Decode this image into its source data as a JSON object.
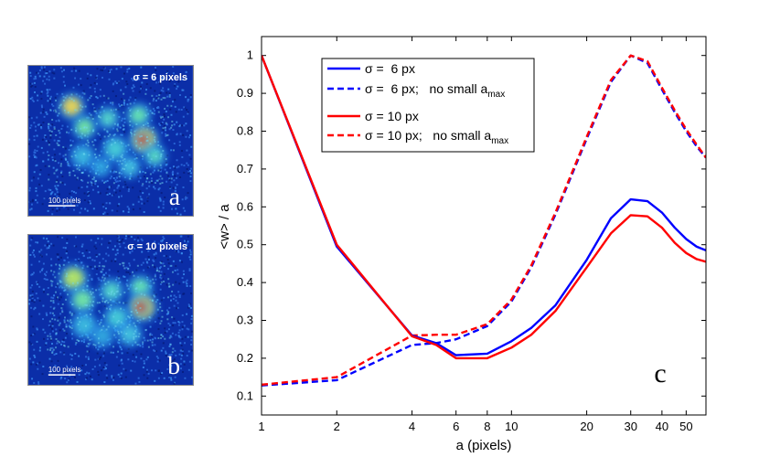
{
  "images": [
    {
      "id": "a",
      "sigma_label": "σ = 6 pixels",
      "scale_label": "100 pixels",
      "letter": "a",
      "colors": {
        "background": "#0b2ea8",
        "label": "#ffffff"
      }
    },
    {
      "id": "b",
      "sigma_label": "σ = 10 pixels",
      "scale_label": "100 pixels",
      "letter": "b",
      "colors": {
        "background": "#0b2ea8",
        "label": "#ffffff"
      }
    }
  ],
  "chart_data": {
    "type": "line",
    "panel_label": "c",
    "xlabel": "a (pixels)",
    "ylabel": "<w> / a",
    "xscale": "log",
    "xlim": [
      1,
      60
    ],
    "ylim": [
      0.05,
      1.05
    ],
    "xticks": [
      1,
      2,
      4,
      6,
      8,
      10,
      20,
      30,
      40,
      50
    ],
    "xtick_labels": [
      "1",
      "2",
      "4",
      "6",
      "8",
      "10",
      "20",
      "30",
      "40",
      "50"
    ],
    "yticks": [
      0.1,
      0.2,
      0.3,
      0.4,
      0.5,
      0.6,
      0.7,
      0.8,
      0.9,
      1
    ],
    "ytick_labels": [
      "0.1",
      "0.2",
      "0.3",
      "0.4",
      "0.5",
      "0.6",
      "0.7",
      "0.8",
      "0.9",
      "1"
    ],
    "legend_position": "top-left",
    "series": [
      {
        "name": "σ =  6 px",
        "color": "#0000ff",
        "dash": "solid",
        "x": [
          1,
          2,
          4,
          5,
          6,
          8,
          10,
          12,
          15,
          20,
          25,
          30,
          35,
          40,
          45,
          50,
          55,
          60
        ],
        "y": [
          1.0,
          0.495,
          0.26,
          0.24,
          0.208,
          0.212,
          0.245,
          0.28,
          0.34,
          0.46,
          0.57,
          0.62,
          0.615,
          0.585,
          0.545,
          0.515,
          0.495,
          0.485
        ]
      },
      {
        "name": "σ =  6 px;   no small a",
        "subscript": "max",
        "color": "#0000ff",
        "dash": "dashed",
        "x": [
          1,
          2,
          4,
          5,
          6,
          8,
          10,
          12,
          15,
          20,
          25,
          30,
          35,
          40,
          45,
          50,
          55,
          60
        ],
        "y": [
          0.128,
          0.142,
          0.235,
          0.24,
          0.25,
          0.285,
          0.35,
          0.44,
          0.58,
          0.78,
          0.93,
          1.0,
          0.98,
          0.91,
          0.85,
          0.8,
          0.76,
          0.73
        ]
      },
      {
        "name": "σ = 10 px",
        "color": "#ff0000",
        "dash": "solid",
        "x": [
          1,
          2,
          4,
          5,
          6,
          8,
          10,
          12,
          15,
          20,
          25,
          30,
          35,
          40,
          45,
          50,
          55,
          60
        ],
        "y": [
          1.0,
          0.5,
          0.258,
          0.235,
          0.2,
          0.2,
          0.228,
          0.262,
          0.325,
          0.44,
          0.53,
          0.578,
          0.575,
          0.545,
          0.505,
          0.478,
          0.462,
          0.455
        ]
      },
      {
        "name": "σ = 10 px;   no small a",
        "subscript": "max",
        "color": "#ff0000",
        "dash": "dashed",
        "x": [
          1,
          2,
          4,
          5,
          6,
          8,
          10,
          12,
          15,
          20,
          25,
          30,
          35,
          40,
          45,
          50,
          55,
          60
        ],
        "y": [
          0.13,
          0.15,
          0.26,
          0.262,
          0.262,
          0.29,
          0.355,
          0.445,
          0.585,
          0.785,
          0.935,
          1.0,
          0.985,
          0.915,
          0.855,
          0.805,
          0.765,
          0.73
        ]
      }
    ]
  }
}
